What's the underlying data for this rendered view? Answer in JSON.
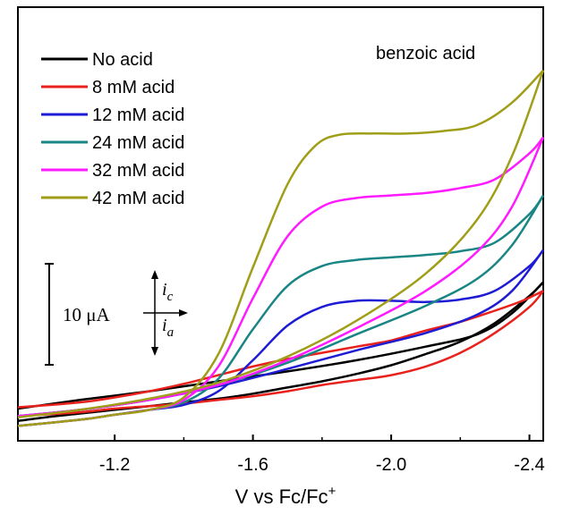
{
  "chart_data": {
    "type": "line",
    "title": "",
    "annotation": "benzoic acid",
    "xlabel": {
      "main": "V vs Fc/Fc",
      "sup": "+"
    },
    "ylabel": "",
    "xlim": [
      -0.92,
      -2.44
    ],
    "ylim": [
      -1.5,
      33.5
    ],
    "x_ticks": [
      -1.2,
      -1.6,
      -2.0,
      -2.4
    ],
    "x_tick_labels": [
      "-1.2",
      "-1.6",
      "-2.0",
      "-2.4"
    ],
    "y_ticks": [],
    "grid": false,
    "legend_position": "top-left",
    "scale_bar": {
      "label": "10 μA",
      "value_uA": 10
    },
    "current_indicator": {
      "cathodic": "i",
      "cathodic_sub": "c",
      "anodic": "i",
      "anodic_sub": "a"
    },
    "series": [
      {
        "name": "No acid",
        "color": "#000000",
        "forward": [
          [
            -0.92,
            0.1
          ],
          [
            -1.0,
            0.4
          ],
          [
            -1.1,
            0.7
          ],
          [
            -1.2,
            1.0
          ],
          [
            -1.3,
            1.3
          ],
          [
            -1.4,
            1.6
          ],
          [
            -1.5,
            1.9
          ],
          [
            -1.6,
            2.3
          ],
          [
            -1.7,
            2.8
          ],
          [
            -1.8,
            3.3
          ],
          [
            -1.9,
            3.9
          ],
          [
            -2.0,
            4.6
          ],
          [
            -2.1,
            5.5
          ],
          [
            -2.2,
            6.5
          ],
          [
            -2.3,
            8.0
          ],
          [
            -2.4,
            10.2
          ],
          [
            -2.44,
            11.3
          ]
        ],
        "reverse": [
          [
            -2.44,
            11.3
          ],
          [
            -2.35,
            8.8
          ],
          [
            -2.25,
            7.1
          ],
          [
            -2.1,
            6.1
          ],
          [
            -1.9,
            5.0
          ],
          [
            -1.7,
            4.1
          ],
          [
            -1.5,
            3.3
          ],
          [
            -1.3,
            2.5
          ],
          [
            -1.1,
            1.8
          ],
          [
            -0.92,
            1.1
          ]
        ]
      },
      {
        "name": "8 mM acid",
        "color": "#e8211d",
        "forward": [
          [
            -0.92,
            0.5
          ],
          [
            -1.1,
            0.8
          ],
          [
            -1.2,
            1.1
          ],
          [
            -1.3,
            1.3
          ],
          [
            -1.4,
            1.5
          ],
          [
            -1.5,
            1.8
          ],
          [
            -1.6,
            2.1
          ],
          [
            -1.7,
            2.5
          ],
          [
            -1.8,
            3.0
          ],
          [
            -1.9,
            3.4
          ],
          [
            -2.0,
            3.8
          ],
          [
            -2.1,
            4.5
          ],
          [
            -2.2,
            5.6
          ],
          [
            -2.3,
            7.2
          ],
          [
            -2.4,
            9.3
          ],
          [
            -2.44,
            10.6
          ]
        ],
        "reverse": [
          [
            -2.44,
            10.6
          ],
          [
            -2.38,
            9.8
          ],
          [
            -2.3,
            9.0
          ],
          [
            -2.2,
            8.1
          ],
          [
            -2.1,
            7.4
          ],
          [
            -2.0,
            6.6
          ],
          [
            -1.9,
            6.1
          ],
          [
            -1.8,
            5.6
          ],
          [
            -1.7,
            5.1
          ],
          [
            -1.6,
            4.5
          ],
          [
            -1.5,
            3.8
          ],
          [
            -1.4,
            3.1
          ],
          [
            -1.3,
            2.5
          ],
          [
            -1.2,
            2.0
          ],
          [
            -1.1,
            1.6
          ],
          [
            -0.92,
            1.2
          ]
        ]
      },
      {
        "name": "12 mM acid",
        "color": "#1d1bd3",
        "forward": [
          [
            -0.92,
            -0.3
          ],
          [
            -1.1,
            0.2
          ],
          [
            -1.2,
            0.6
          ],
          [
            -1.3,
            1.0
          ],
          [
            -1.4,
            1.4
          ],
          [
            -1.5,
            2.5
          ],
          [
            -1.6,
            5.0
          ],
          [
            -1.7,
            7.8
          ],
          [
            -1.8,
            9.3
          ],
          [
            -1.9,
            9.8
          ],
          [
            -2.0,
            9.8
          ],
          [
            -2.1,
            9.7
          ],
          [
            -2.2,
            9.9
          ],
          [
            -2.3,
            10.6
          ],
          [
            -2.4,
            12.6
          ],
          [
            -2.44,
            13.9
          ]
        ],
        "reverse": [
          [
            -2.44,
            13.9
          ],
          [
            -2.35,
            10.6
          ],
          [
            -2.25,
            8.7
          ],
          [
            -2.1,
            7.2
          ],
          [
            -1.9,
            5.8
          ],
          [
            -1.7,
            4.3
          ],
          [
            -1.5,
            2.9
          ],
          [
            -1.3,
            1.8
          ],
          [
            -1.1,
            1.0
          ],
          [
            -0.92,
            0.5
          ]
        ]
      },
      {
        "name": "24 mM acid",
        "color": "#1a8585",
        "forward": [
          [
            -0.92,
            -0.3
          ],
          [
            -1.1,
            0.2
          ],
          [
            -1.2,
            0.6
          ],
          [
            -1.3,
            1.0
          ],
          [
            -1.4,
            1.6
          ],
          [
            -1.5,
            3.5
          ],
          [
            -1.6,
            7.5
          ],
          [
            -1.7,
            11.0
          ],
          [
            -1.8,
            12.6
          ],
          [
            -1.9,
            13.1
          ],
          [
            -2.0,
            13.3
          ],
          [
            -2.1,
            13.5
          ],
          [
            -2.2,
            13.8
          ],
          [
            -2.3,
            14.5
          ],
          [
            -2.4,
            16.8
          ],
          [
            -2.44,
            18.3
          ]
        ],
        "reverse": [
          [
            -2.44,
            18.3
          ],
          [
            -2.35,
            14.3
          ],
          [
            -2.25,
            11.6
          ],
          [
            -2.1,
            9.4
          ],
          [
            -1.9,
            7.1
          ],
          [
            -1.7,
            4.8
          ],
          [
            -1.5,
            3.0
          ],
          [
            -1.3,
            1.8
          ],
          [
            -1.1,
            1.0
          ],
          [
            -0.92,
            0.5
          ]
        ]
      },
      {
        "name": "32 mM acid",
        "color": "#ff1aff",
        "forward": [
          [
            -0.92,
            -0.3
          ],
          [
            -1.1,
            0.2
          ],
          [
            -1.2,
            0.6
          ],
          [
            -1.3,
            1.0
          ],
          [
            -1.4,
            1.8
          ],
          [
            -1.5,
            4.5
          ],
          [
            -1.6,
            10.0
          ],
          [
            -1.7,
            15.0
          ],
          [
            -1.8,
            17.4
          ],
          [
            -1.9,
            18.1
          ],
          [
            -2.0,
            18.3
          ],
          [
            -2.1,
            18.5
          ],
          [
            -2.2,
            18.9
          ],
          [
            -2.3,
            19.6
          ],
          [
            -2.4,
            21.7
          ],
          [
            -2.44,
            23.0
          ]
        ],
        "reverse": [
          [
            -2.44,
            23.0
          ],
          [
            -2.35,
            17.4
          ],
          [
            -2.25,
            13.8
          ],
          [
            -2.1,
            10.6
          ],
          [
            -1.9,
            7.6
          ],
          [
            -1.7,
            5.0
          ],
          [
            -1.5,
            3.0
          ],
          [
            -1.3,
            1.8
          ],
          [
            -1.1,
            1.0
          ],
          [
            -0.92,
            0.5
          ]
        ]
      },
      {
        "name": "42 mM acid",
        "color": "#a09e19",
        "forward": [
          [
            -0.92,
            -0.3
          ],
          [
            -1.1,
            0.2
          ],
          [
            -1.2,
            0.6
          ],
          [
            -1.3,
            1.0
          ],
          [
            -1.4,
            2.0
          ],
          [
            -1.5,
            5.5
          ],
          [
            -1.6,
            12.5
          ],
          [
            -1.7,
            19.2
          ],
          [
            -1.78,
            22.3
          ],
          [
            -1.85,
            23.2
          ],
          [
            -1.95,
            23.3
          ],
          [
            -2.05,
            23.3
          ],
          [
            -2.15,
            23.5
          ],
          [
            -2.25,
            24.0
          ],
          [
            -2.35,
            25.8
          ],
          [
            -2.44,
            28.4
          ]
        ],
        "reverse": [
          [
            -2.44,
            28.4
          ],
          [
            -2.35,
            21.5
          ],
          [
            -2.25,
            16.4
          ],
          [
            -2.1,
            12.0
          ],
          [
            -1.9,
            8.2
          ],
          [
            -1.7,
            5.3
          ],
          [
            -1.5,
            3.2
          ],
          [
            -1.3,
            1.9
          ],
          [
            -1.1,
            1.0
          ],
          [
            -0.92,
            0.4
          ]
        ]
      }
    ]
  }
}
